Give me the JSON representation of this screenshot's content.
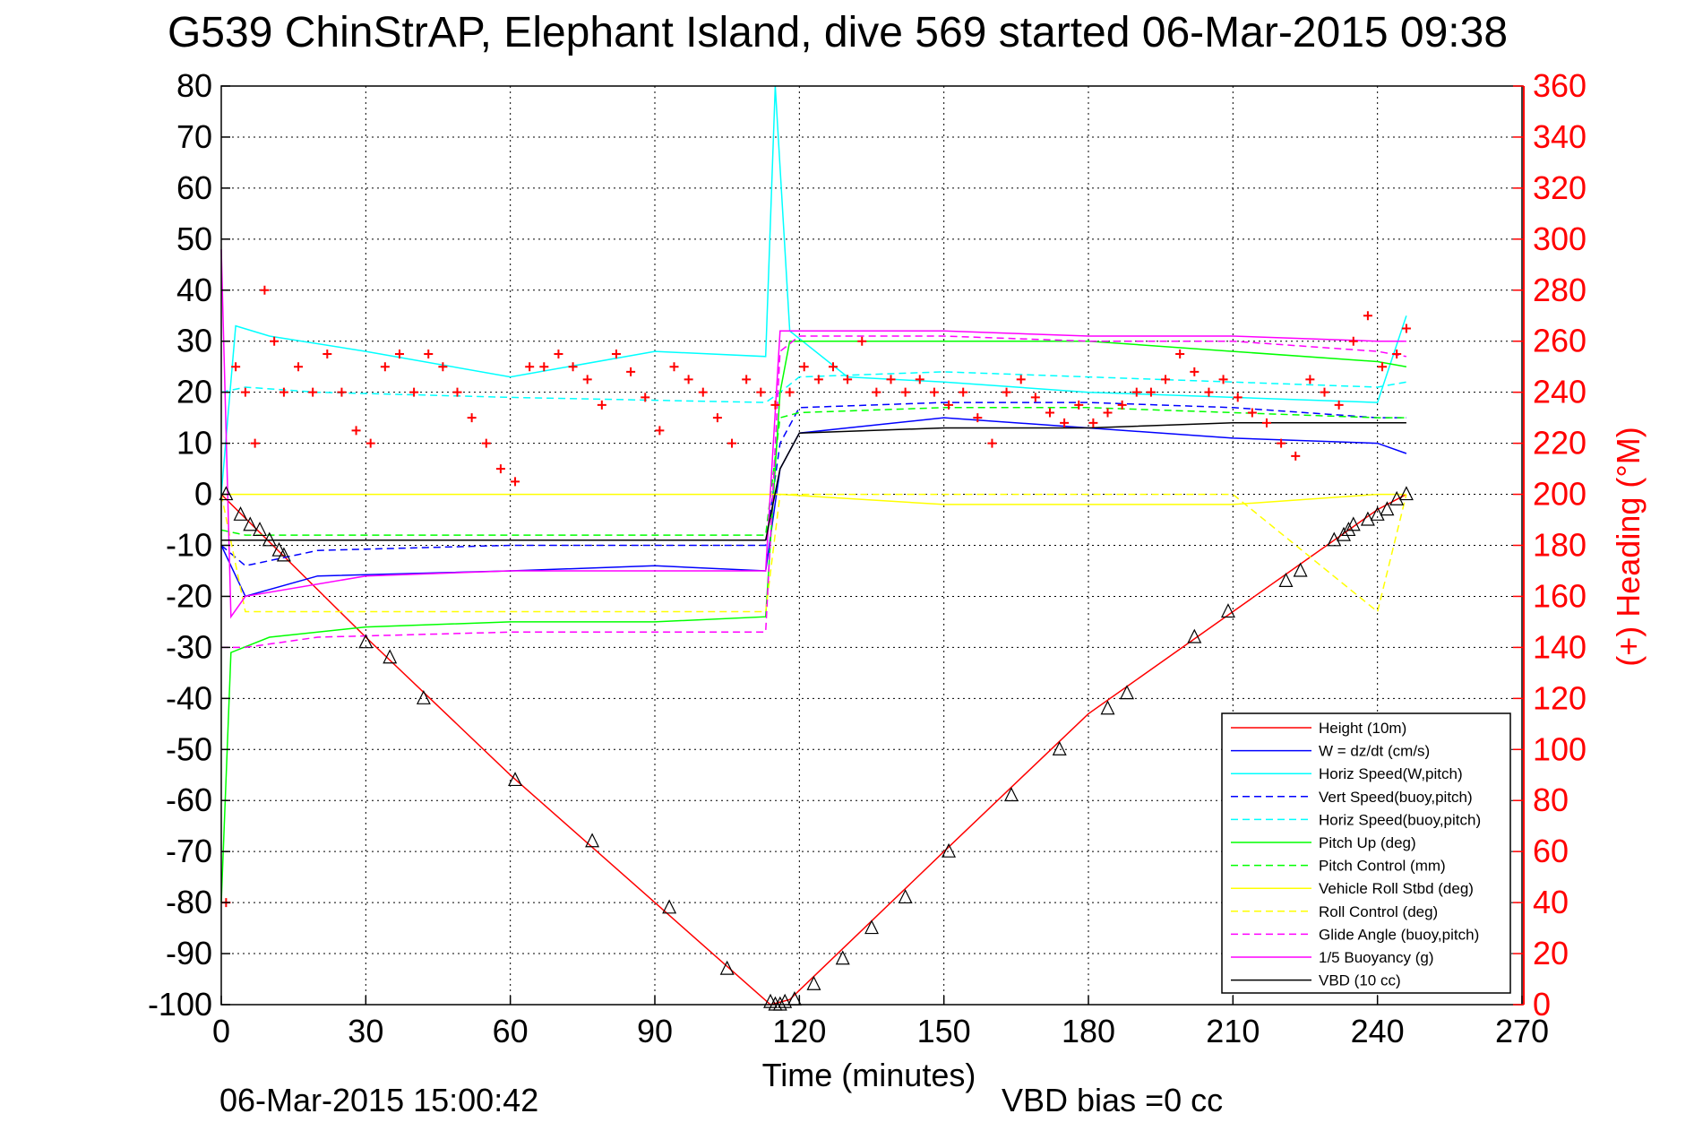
{
  "chart_data": {
    "type": "line",
    "title": "G539 ChinStrAP, Elephant Island, dive 569 started 06-Mar-2015 09:38",
    "xlabel": "Time (minutes)",
    "ylabel": "",
    "y2label": "(+) Heading (°M)",
    "xlim": [
      0,
      270
    ],
    "ylim": [
      -100,
      80
    ],
    "y2lim": [
      0,
      360
    ],
    "xticks": [
      "0",
      "30",
      "60",
      "90",
      "120",
      "150",
      "180",
      "210",
      "240",
      "270"
    ],
    "yticks": [
      "80",
      "70",
      "60",
      "50",
      "40",
      "30",
      "20",
      "10",
      "0",
      "-10",
      "-20",
      "-30",
      "-40",
      "-50",
      "-60",
      "-70",
      "-80",
      "-90",
      "-100"
    ],
    "y2ticks": [
      "360",
      "340",
      "320",
      "300",
      "280",
      "260",
      "240",
      "220",
      "200",
      "180",
      "160",
      "140",
      "120",
      "100",
      "80",
      "60",
      "40",
      "20",
      "0"
    ],
    "grid": true,
    "legend_position": "bottom-right",
    "footer_date": "06-Mar-2015 15:00:42",
    "footer_note": "VBD bias =0 cc",
    "series": [
      {
        "name": "Height (10m)",
        "color": "#ff0000",
        "style": "solid",
        "x": [
          0,
          30,
          60,
          90,
          114,
          118,
          150,
          180,
          210,
          240,
          246
        ],
        "y": [
          0,
          -28,
          -55,
          -80,
          -100,
          -99,
          -70,
          -43,
          -23,
          -3,
          0
        ]
      },
      {
        "name": "W = dz/dt (cm/s)",
        "color": "#0000ff",
        "style": "solid",
        "x": [
          0,
          5,
          20,
          60,
          90,
          113,
          116,
          120,
          130,
          150,
          180,
          210,
          240,
          246
        ],
        "y": [
          -10,
          -20,
          -16,
          -15,
          -14,
          -15,
          5,
          12,
          13,
          15,
          13,
          11,
          10,
          8
        ]
      },
      {
        "name": "Horiz Speed(W,pitch)",
        "color": "#00ffff",
        "style": "solid",
        "x": [
          0,
          3,
          10,
          30,
          60,
          90,
          113,
          115,
          118,
          130,
          150,
          180,
          210,
          240,
          246
        ],
        "y": [
          0,
          33,
          31,
          28,
          23,
          28,
          27,
          80,
          32,
          23,
          22,
          20,
          19,
          18,
          35
        ]
      },
      {
        "name": "Vert Speed(buoy,pitch)",
        "color": "#0000ff",
        "style": "dashed",
        "x": [
          0,
          5,
          20,
          60,
          90,
          113,
          116,
          120,
          150,
          180,
          210,
          240,
          246
        ],
        "y": [
          -10,
          -14,
          -11,
          -10,
          -10,
          -10,
          10,
          17,
          18,
          18,
          17,
          15,
          15
        ]
      },
      {
        "name": "Horiz Speed(buoy,pitch)",
        "color": "#00ffff",
        "style": "dashed",
        "x": [
          0,
          5,
          20,
          60,
          113,
          116,
          120,
          150,
          180,
          210,
          240,
          246
        ],
        "y": [
          20,
          21,
          20,
          19,
          18,
          20,
          23,
          24,
          23,
          22,
          21,
          22
        ]
      },
      {
        "name": "Pitch Up (deg)",
        "color": "#00ff00",
        "style": "solid",
        "x": [
          0,
          2,
          10,
          30,
          60,
          90,
          113,
          116,
          118,
          150,
          180,
          210,
          240,
          246
        ],
        "y": [
          -80,
          -31,
          -28,
          -26,
          -25,
          -25,
          -24,
          20,
          30,
          30,
          30,
          28,
          26,
          25
        ]
      },
      {
        "name": "Pitch Control (mm)",
        "color": "#00ff00",
        "style": "dashed",
        "x": [
          0,
          5,
          113,
          116,
          120,
          150,
          180,
          210,
          240,
          246
        ],
        "y": [
          -7,
          -8,
          -8,
          15,
          16,
          17,
          17,
          16,
          15,
          15
        ]
      },
      {
        "name": "Vehicle Roll Stbd (deg)",
        "color": "#ffff00",
        "style": "solid",
        "x": [
          0,
          5,
          20,
          60,
          113,
          116,
          150,
          180,
          210,
          240,
          246
        ],
        "y": [
          0,
          0,
          0,
          0,
          0,
          0,
          -2,
          -2,
          -2,
          0,
          0
        ]
      },
      {
        "name": "Roll Control (deg)",
        "color": "#ffff00",
        "style": "dashed",
        "x": [
          0,
          5,
          60,
          113,
          116,
          150,
          210,
          240,
          246
        ],
        "y": [
          0,
          -23,
          -23,
          -23,
          0,
          0,
          0,
          -23,
          0
        ]
      },
      {
        "name": "Glide Angle (buoy,pitch)",
        "color": "#ff00ff",
        "style": "dashed",
        "x": [
          0,
          5,
          20,
          60,
          90,
          113,
          116,
          120,
          150,
          180,
          210,
          240,
          246
        ],
        "y": [
          -30,
          -30,
          -28,
          -27,
          -27,
          -27,
          28,
          31,
          31,
          30,
          30,
          28,
          27
        ]
      },
      {
        "name": "1/5 Buoyancy (g)",
        "color": "#ff00ff",
        "style": "solid",
        "x": [
          0,
          2,
          5,
          30,
          60,
          90,
          113,
          116,
          120,
          150,
          180,
          210,
          240,
          246
        ],
        "y": [
          48,
          -24,
          -20,
          -16,
          -15,
          -15,
          -15,
          32,
          32,
          32,
          31,
          31,
          30,
          30
        ]
      },
      {
        "name": "VBD (10 cc)",
        "color": "#000000",
        "style": "solid",
        "x": [
          0,
          2,
          60,
          113,
          116,
          120,
          150,
          180,
          210,
          240,
          246
        ],
        "y": [
          -9,
          -9,
          -9,
          -9,
          5,
          12,
          13,
          13,
          14,
          14,
          14
        ]
      }
    ],
    "heading_points": {
      "axis": "right",
      "color": "#ff0000",
      "x": [
        1,
        3,
        5,
        7,
        9,
        11,
        13,
        16,
        19,
        22,
        25,
        28,
        31,
        34,
        37,
        40,
        43,
        46,
        49,
        52,
        55,
        58,
        61,
        64,
        67,
        70,
        73,
        76,
        79,
        82,
        85,
        88,
        91,
        94,
        97,
        100,
        103,
        106,
        109,
        112,
        115,
        118,
        121,
        124,
        127,
        130,
        133,
        136,
        139,
        142,
        145,
        148,
        151,
        154,
        157,
        160,
        163,
        166,
        169,
        172,
        175,
        178,
        181,
        184,
        187,
        190,
        193,
        196,
        199,
        202,
        205,
        208,
        211,
        214,
        217,
        220,
        223,
        226,
        229,
        232,
        235,
        238,
        241,
        244,
        246
      ],
      "y": [
        40,
        250,
        240,
        220,
        280,
        260,
        240,
        250,
        240,
        255,
        240,
        225,
        220,
        250,
        255,
        240,
        255,
        250,
        240,
        230,
        220,
        210,
        205,
        250,
        250,
        255,
        250,
        245,
        235,
        255,
        248,
        238,
        225,
        250,
        245,
        240,
        230,
        220,
        245,
        240,
        235,
        240,
        250,
        245,
        250,
        245,
        260,
        240,
        245,
        240,
        245,
        240,
        235,
        240,
        230,
        220,
        240,
        245,
        238,
        232,
        228,
        235,
        228,
        232,
        235,
        240,
        240,
        245,
        255,
        248,
        240,
        245,
        238,
        232,
        228,
        220,
        215,
        245,
        240,
        235,
        260,
        270,
        250,
        255,
        265
      ]
    },
    "marker_points": {
      "symbol": "triangle",
      "color": "#000000",
      "x": [
        1,
        4,
        6,
        8,
        10,
        12,
        13,
        30,
        35,
        42,
        61,
        77,
        93,
        105,
        114,
        115,
        116,
        117,
        119,
        123,
        129,
        135,
        142,
        151,
        164,
        174,
        184,
        188,
        202,
        209,
        221,
        224,
        231,
        233,
        234,
        235,
        238,
        240,
        242,
        244,
        246
      ],
      "y": [
        0,
        -4,
        -6,
        -7,
        -9,
        -11,
        -12,
        -29,
        -32,
        -40,
        -56,
        -68,
        -81,
        -93,
        -99.5,
        -100,
        -100,
        -99.5,
        -99,
        -96,
        -91,
        -85,
        -79,
        -70,
        -59,
        -50,
        -42,
        -39,
        -28,
        -23,
        -17,
        -15,
        -9,
        -8,
        -7,
        -6,
        -5,
        -4,
        -3,
        -1,
        0
      ]
    }
  }
}
